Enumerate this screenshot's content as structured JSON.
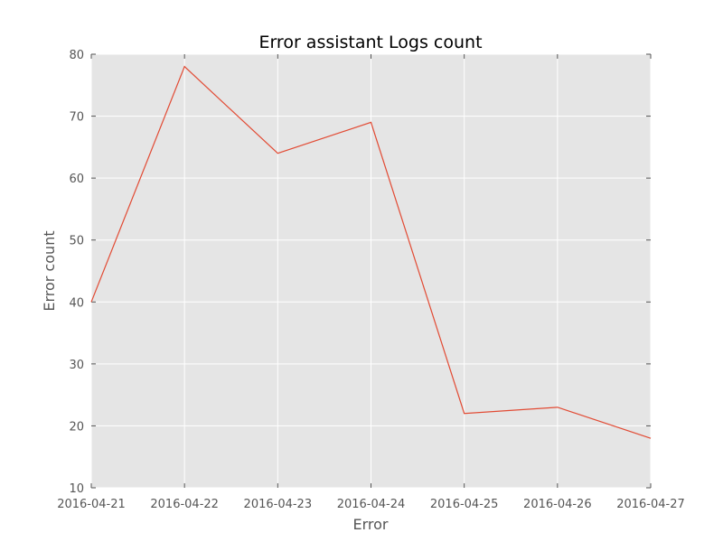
{
  "chart_data": {
    "type": "line",
    "title": "Error assistant Logs count",
    "xlabel": "Error",
    "ylabel": "Error count",
    "x": [
      "2016-04-21",
      "2016-04-22",
      "2016-04-23",
      "2016-04-24",
      "2016-04-25",
      "2016-04-26",
      "2016-04-27"
    ],
    "series": [
      {
        "values": [
          40,
          78,
          64,
          69,
          22,
          23,
          18
        ]
      }
    ],
    "ylim": [
      10,
      80
    ],
    "yticks": [
      10,
      20,
      30,
      40,
      50,
      60,
      70,
      80
    ],
    "grid": true,
    "legend": "none",
    "colors": {
      "background": "#e5e5e5",
      "series": "#e24a33",
      "grid": "#ffffff"
    }
  }
}
